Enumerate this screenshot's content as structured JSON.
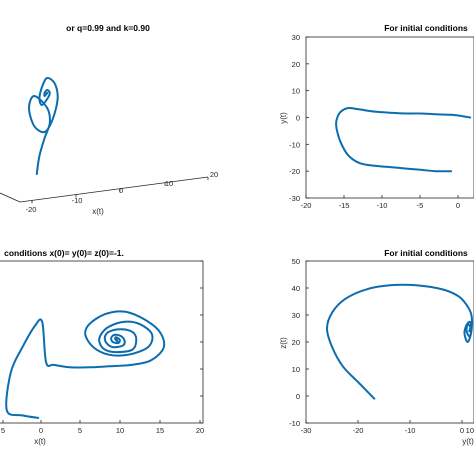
{
  "chart_data": [
    {
      "type": "line",
      "panel": "top-left",
      "title": "or q=0.99 and k=0.90",
      "xlabel": "x(t)",
      "xticks": [
        "-20",
        "-10",
        "0",
        "10",
        "20"
      ],
      "yticks": [],
      "grid": false,
      "series": [
        {
          "color": "#0b6db0",
          "x": [
            -2,
            -1,
            1,
            3,
            2,
            -3,
            -5,
            -3,
            1,
            4,
            6,
            5,
            2,
            0,
            -1,
            0,
            2,
            3,
            2,
            1,
            1,
            2,
            2
          ],
          "y": [
            -8,
            -2,
            4,
            9,
            14,
            18,
            14,
            8,
            6,
            10,
            17,
            22,
            24,
            21,
            17,
            15,
            17,
            19,
            20,
            19,
            18,
            19,
            19
          ]
        }
      ]
    },
    {
      "type": "line",
      "panel": "top-right",
      "title": "For initial conditions",
      "xlabel": "",
      "ylabel": "y(t)",
      "xticks": [
        "-20",
        "-15",
        "-10",
        "-5",
        "0"
      ],
      "yticks": [
        "30",
        "20",
        "10",
        "0",
        "-10",
        "-20",
        "-30"
      ],
      "xlim": [
        -20,
        2
      ],
      "ylim": [
        -30,
        30
      ],
      "grid": false,
      "series": [
        {
          "color": "#0b6db0",
          "x": [
            -1,
            -3,
            -5,
            -7,
            -9,
            -11,
            -13,
            -14.5,
            -15.5,
            -16,
            -16,
            -15.5,
            -14.5,
            -13,
            -11,
            -9,
            -7,
            -5,
            -3,
            -1,
            0.5,
            1.5
          ],
          "y": [
            -20,
            -20,
            -19.5,
            -19,
            -18.5,
            -18,
            -17,
            -14,
            -9,
            -4,
            -1,
            2,
            3.5,
            3,
            2.2,
            1.8,
            1.5,
            1.5,
            1.2,
            1,
            0.5,
            0
          ]
        }
      ]
    },
    {
      "type": "line",
      "panel": "bottom-left",
      "title": "conditions x(0)= y(0)= z(0)=-1.",
      "xlabel": "x(t)",
      "xticks": [
        "5",
        "0",
        "5",
        "10",
        "15",
        "20"
      ],
      "yticks": [],
      "xlim": [
        -6,
        20
      ],
      "grid": false,
      "series": [
        {
          "color": "#0b6db0",
          "x": [
            -1,
            -3,
            -5,
            -4.5,
            -3,
            -1.5,
            -0.5,
            0,
            1,
            3,
            5.5,
            8,
            11,
            13.5,
            15,
            14.5,
            12.5,
            10,
            7.5,
            5.5,
            5,
            6,
            8,
            10.5,
            13,
            13.5,
            12,
            10,
            8,
            7,
            6.8,
            7.5,
            9,
            11,
            11.5,
            11,
            9.5,
            8,
            7.5,
            7.7,
            8.5,
            9.8,
            10,
            9.5,
            8.7,
            8.3,
            8.5,
            9.2,
            9.4,
            9,
            8.8,
            8.9,
            9.1,
            9
          ],
          "y": [
            -5,
            -4.5,
            -3.5,
            4,
            9,
            13,
            14,
            6,
            5.5,
            5,
            5,
            5.2,
            5.5,
            6.5,
            9,
            12,
            14.5,
            16,
            15.5,
            13.5,
            11.5,
            9,
            7.5,
            7.5,
            9,
            11.5,
            13.5,
            14,
            13,
            11.5,
            10,
            8.5,
            8,
            8.5,
            10.5,
            12,
            12.5,
            12,
            11,
            9.8,
            9,
            9.3,
            10.3,
            11.2,
            11.4,
            10.8,
            10,
            9.8,
            10.4,
            10.9,
            10.8,
            10.4,
            10.2,
            10.5
          ]
        }
      ]
    },
    {
      "type": "line",
      "panel": "bottom-right",
      "title": "For initial conditions",
      "xlabel": "y(t)",
      "ylabel": "z(t)",
      "xticks": [
        "-30",
        "-20",
        "-10",
        "0",
        "10"
      ],
      "yticks": [
        "50",
        "40",
        "30",
        "20",
        "10",
        "0",
        "-10"
      ],
      "xlim": [
        -30,
        2
      ],
      "ylim": [
        -10,
        50
      ],
      "grid": false,
      "series": [
        {
          "color": "#0b6db0",
          "x": [
            -17,
            -20,
            -23,
            -25,
            -26,
            -25,
            -22.5,
            -18.5,
            -14,
            -9,
            -4,
            -1,
            0.5,
            1.5,
            1.5,
            0.8,
            0.2,
            0.5,
            1.2,
            1.5,
            1.2,
            0.6,
            0.8,
            1.3,
            1.1
          ],
          "y": [
            -1,
            5,
            11,
            18,
            25,
            31,
            36,
            39.5,
            41,
            41,
            39.5,
            37,
            34,
            30,
            24,
            20,
            23,
            26,
            27.5,
            25,
            22,
            24,
            26.5,
            25.5,
            24
          ]
        }
      ]
    }
  ]
}
